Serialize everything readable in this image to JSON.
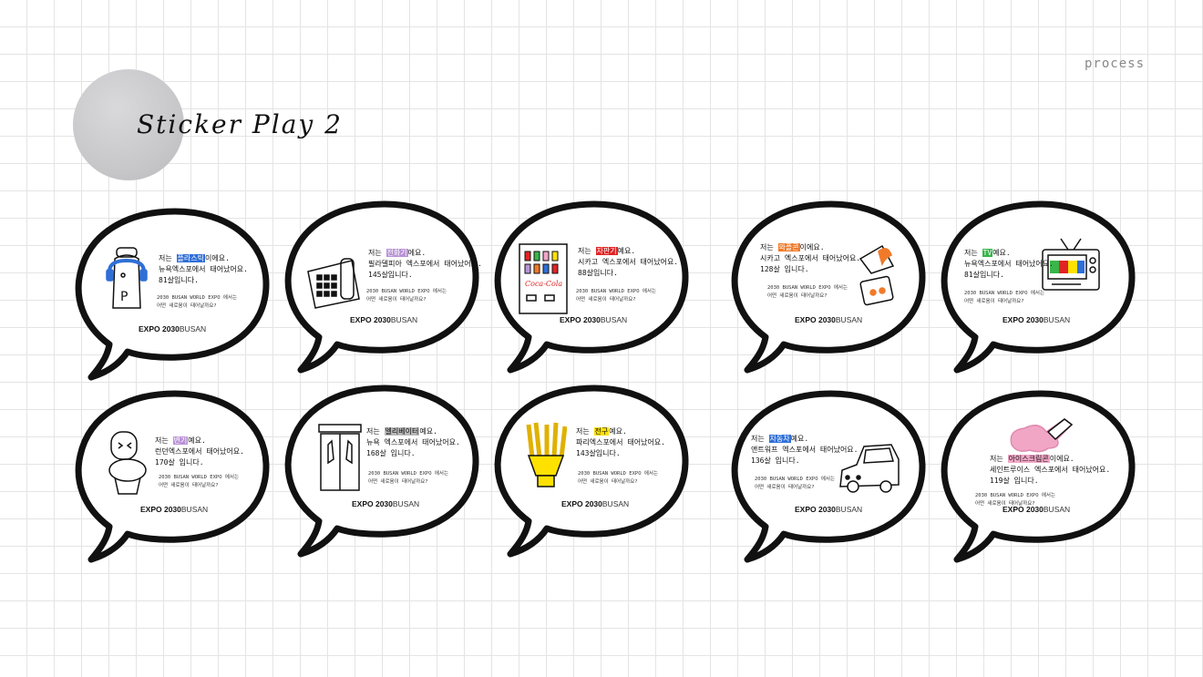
{
  "header": {
    "title": "Sticker Play 2",
    "section_label": "process"
  },
  "common": {
    "question_line1": "2030 BUSAN WORLD EXPO 에서는",
    "question_line2": "어떤 새로움이 태어날까요?",
    "logo_bold": "EXPO 2030",
    "logo_light": "BUSAN"
  },
  "colors": {
    "paper": "#ffffff",
    "grid": "#e4e4e4",
    "outline": "#111111",
    "blue": "#2f6fd6",
    "purple": "#b993d6",
    "red": "#e02424",
    "orange": "#f07a2a",
    "green": "#39b54a",
    "gray": "#b9b9b9",
    "yellow": "#ffe100",
    "pink": "#f2a6c6"
  },
  "bubbles": [
    {
      "icon": "robot-mascot-icon",
      "highlight": "플라스틱",
      "highlight_color": "#2f6fd6",
      "line1_pre": "저는 ",
      "line1_post": "이에요.",
      "line2": "뉴욕엑스포에서 태어났어요.",
      "line3": "81살입니다."
    },
    {
      "icon": "telephone-icon",
      "highlight": "전화기",
      "highlight_color": "#b993d6",
      "line1_pre": "저는 ",
      "line1_post": "에요.",
      "line2": "필라델피아 엑스포에서 태어났어요.",
      "line3": "145살입니다."
    },
    {
      "icon": "vending-machine-icon",
      "highlight": "자판기",
      "highlight_color": "#e02424",
      "line1_pre": "저는 ",
      "line1_post": "예요.",
      "line2": "시카고 엑스포에서 태어났어요.",
      "line3": "88살입니다."
    },
    {
      "icon": "ice-cream-cone-icon",
      "highlight": "와플콘",
      "highlight_color": "#f07a2a",
      "line1_pre": "저는 ",
      "line1_post": "이에요.",
      "line2": "시카고 엑스포에서 태어났어요.",
      "line3": "128살 입니다."
    },
    {
      "icon": "television-icon",
      "highlight": "TV",
      "highlight_color": "#39b54a",
      "line1_pre": "저는 ",
      "line1_post": "예요.",
      "line2": "뉴욕엑스포에서 태어났어요.",
      "line3": "81살입니다."
    },
    {
      "icon": "toilet-icon",
      "highlight": "변기",
      "highlight_color": "#b993d6",
      "line1_pre": "저는 ",
      "line1_post": "예요.",
      "line2": "런던엑스포에서 태어났어요.",
      "line3": "170살 입니다."
    },
    {
      "icon": "elevator-icon",
      "highlight": "엘리베이터",
      "highlight_color": "#b9b9b9",
      "line1_pre": "저는 ",
      "line1_post": "예요.",
      "line2": "뉴욕 엑스포에서 태어났어요.",
      "line3": "168살 입니다."
    },
    {
      "icon": "french-fries-icon",
      "highlight": "전구",
      "highlight_color": "#ffe100",
      "line1_pre": "저는 ",
      "line1_post": "예요.",
      "line2": "파리엑스포에서 태어났어요.",
      "line3": "143살입니다."
    },
    {
      "icon": "car-icon",
      "highlight": "자동차",
      "highlight_color": "#2f6fd6",
      "line1_pre": "저는 ",
      "line1_post": "예요.",
      "line2": "앤트워프 엑스포에서 태어났어요.",
      "line3": "136살 입니다."
    },
    {
      "icon": "melting-ice-cream-icon",
      "highlight": "아이스크림콘",
      "highlight_color": "#f2a6c6",
      "line1_pre": "저는 ",
      "line1_post": "이에요.",
      "line2": "세인트루이스 엑스포에서 태어났어요.",
      "line3": "119살 입니다."
    }
  ]
}
